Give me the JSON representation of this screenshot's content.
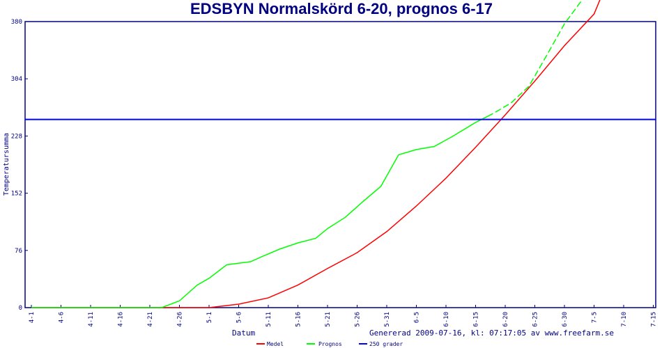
{
  "chart_data": {
    "type": "line",
    "title": "EDSBYN Normalskörd 6-20, prognos 6-17",
    "xlabel": "Datum",
    "ylabel": "Temperatursumma",
    "footer": "Genererad 2009-07-16, kl: 07:17:05 av www.freefarm.se",
    "ylim": [
      0,
      380
    ],
    "yticks": [
      0,
      76,
      152,
      228,
      304,
      380
    ],
    "xticks": [
      "4-1",
      "4-6",
      "4-11",
      "4-16",
      "4-21",
      "4-26",
      "5-1",
      "5-6",
      "5-11",
      "5-16",
      "5-21",
      "5-26",
      "5-31",
      "6-5",
      "6-10",
      "6-15",
      "6-20",
      "6-25",
      "6-30",
      "7-5",
      "7-10",
      "7-15"
    ],
    "legend_position": "bottom",
    "series": [
      {
        "name": "Medel",
        "color": "#ff0000",
        "x": [
          "4-1",
          "4-28",
          "5-1",
          "5-6",
          "5-11",
          "5-16",
          "5-21",
          "5-26",
          "5-31",
          "6-5",
          "6-10",
          "6-15",
          "6-20",
          "6-25",
          "6-30",
          "7-5",
          "7-6"
        ],
        "values": [
          0,
          0,
          0,
          4.6,
          13,
          30,
          52,
          73,
          101,
          135,
          172,
          213,
          256,
          301,
          348,
          390,
          409
        ]
      },
      {
        "name": "Prognos",
        "color": "#00ff00",
        "dashed_from": "6-17",
        "x": [
          "4-1",
          "4-23",
          "4-26",
          "4-29",
          "5-1",
          "5-4",
          "5-8",
          "5-10",
          "5-13",
          "5-16",
          "5-19",
          "5-21",
          "5-24",
          "5-27",
          "5-30",
          "6-2",
          "6-5",
          "6-8",
          "6-11",
          "6-15",
          "6-17",
          "6-18",
          "6-21",
          "6-24",
          "6-27",
          "6-30",
          "7-3"
        ],
        "values": [
          0,
          0,
          9,
          30,
          39,
          57,
          61,
          68,
          78,
          86,
          92,
          105,
          120,
          141,
          161,
          203,
          210,
          214,
          227,
          246,
          254,
          258,
          272,
          294,
          335,
          377,
          409
        ]
      },
      {
        "name": "250 grader",
        "color": "#0000ff",
        "x": [
          "4-1",
          "7-15"
        ],
        "values": [
          250,
          250
        ]
      }
    ]
  }
}
